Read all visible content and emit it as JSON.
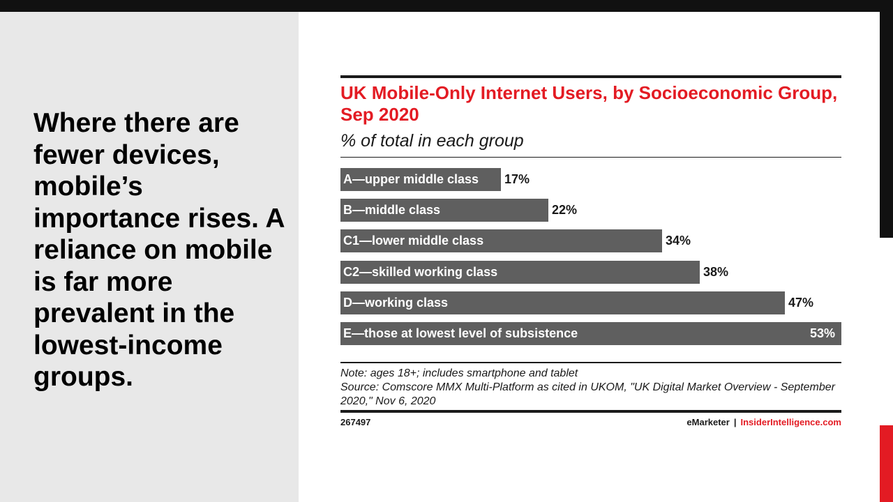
{
  "slide": {
    "headline": "Where there are fewer devices, mobile’s importance rises. A reliance on mobile is far more prevalent in the lowest-income groups.",
    "colors": {
      "accent": "#e31b23",
      "bar": "#5f5f5f",
      "left_panel": "#e8e8e8"
    }
  },
  "chart_data": {
    "type": "bar",
    "orientation": "horizontal",
    "title": "UK Mobile-Only Internet Users, by Socioeconomic Group, Sep 2020",
    "subtitle": "% of total in each group",
    "categories": [
      "A—upper middle class",
      "B—middle class",
      "C1—lower middle class",
      "C2—skilled working class",
      "D—working class",
      "E—those at lowest level of subsistence"
    ],
    "values": [
      17,
      22,
      34,
      38,
      47,
      53
    ],
    "value_labels": [
      "17%",
      "22%",
      "34%",
      "38%",
      "47%",
      "53%"
    ],
    "xlim": [
      0,
      53
    ],
    "grid": false,
    "legend": "none",
    "note": "Note: ages 18+; includes smartphone and tablet",
    "source": "Source: Comscore MMX Multi-Platform as cited in UKOM, \"UK Digital Market Overview - September 2020,\" Nov 6, 2020",
    "chart_id": "267497",
    "brand": {
      "emarketer": "eMarketer",
      "separator": "|",
      "insider": "InsiderIntelligence.com"
    }
  }
}
